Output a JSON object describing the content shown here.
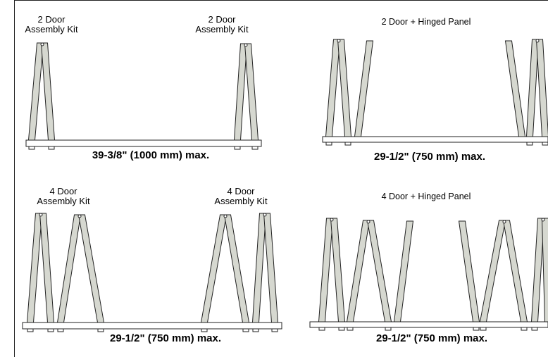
{
  "panels": {
    "two_door": {
      "left_label": [
        "2 Door",
        "Assembly Kit"
      ],
      "right_label": [
        "2 Door",
        "Assembly Kit"
      ],
      "dimension": "39-3/8\" (1000 mm) max."
    },
    "two_door_hinged": {
      "title": "2 Door + Hinged Panel",
      "dimension": "29-1/2\" (750 mm) max."
    },
    "four_door": {
      "left_label": [
        "4 Door",
        "Assembly Kit"
      ],
      "right_label": [
        "4 Door",
        "Assembly Kit"
      ],
      "dimension": "29-1/2\" (750 mm) max."
    },
    "four_door_hinged": {
      "title": "4 Door + Hinged Panel",
      "dimension": "29-1/2\" (750 mm) max."
    }
  },
  "colors": {
    "panel_fill": "#d6d8d0",
    "stroke": "#222222"
  }
}
